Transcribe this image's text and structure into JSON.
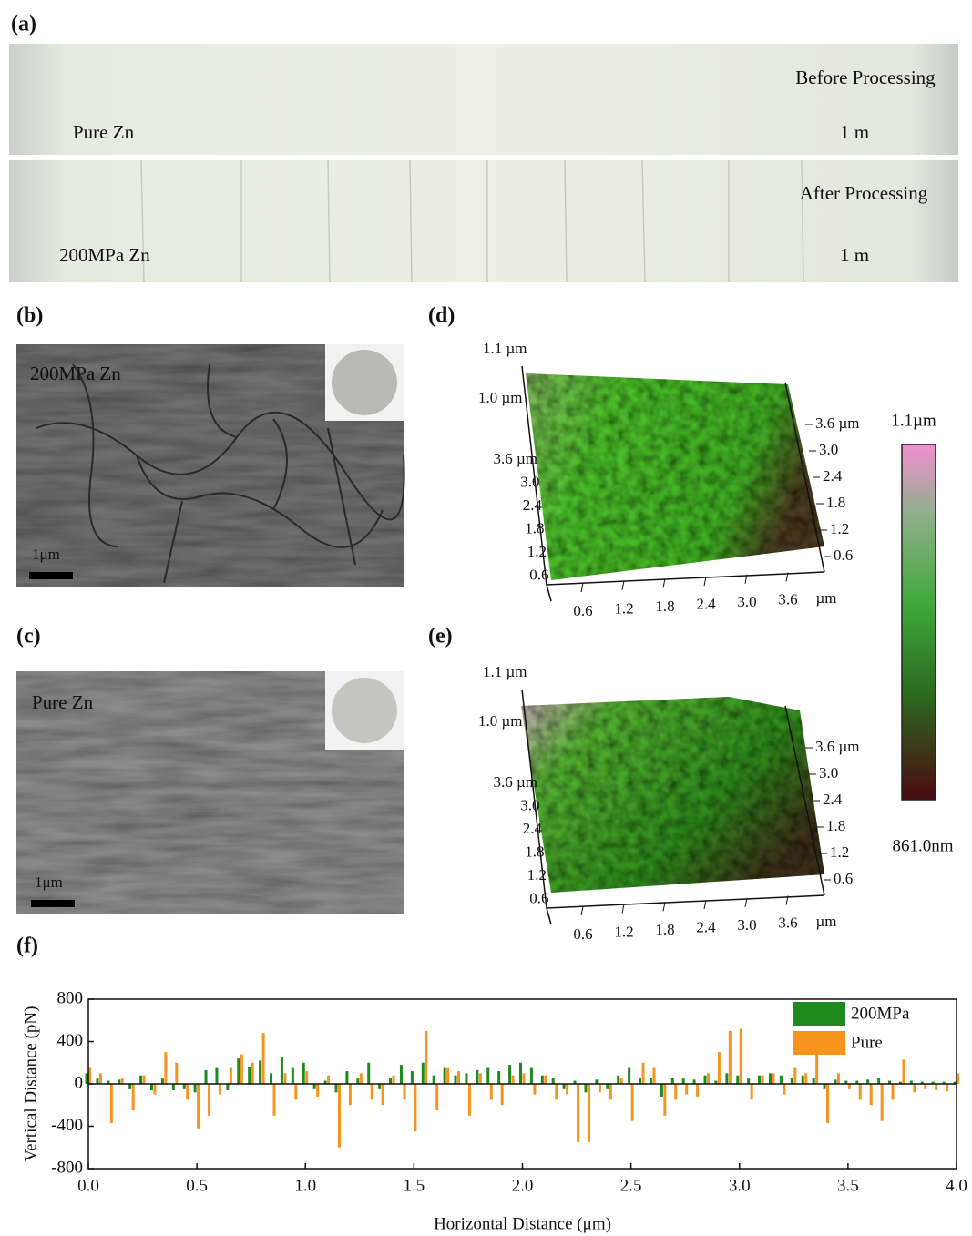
{
  "panel_labels": [
    "(a)",
    "(b)",
    "(c)",
    "(d)",
    "(e)",
    "(f)"
  ],
  "photo": {
    "before": "Before Processing",
    "before_sample": "Pure Zn",
    "before_scale": "1 m",
    "after": "After Processing",
    "after_sample": "200MPa Zn",
    "after_scale": "1 m"
  },
  "sem": [
    {
      "label": "200MPa Zn",
      "scale": "1μm"
    },
    {
      "label": "Pure Zn",
      "scale": "1μm"
    }
  ],
  "afm": [
    {
      "z_top": "1.1 µm",
      "z_mid": "1.0 µm",
      "right_ticks": [
        "3.6 µm",
        "3.0",
        "2.4",
        "1.8",
        "1.2",
        "0.6"
      ],
      "left_ticks": [
        "3.6 µm",
        "3.0",
        "2.4",
        "1.8",
        "1.2",
        "0.6"
      ],
      "x_ticks": [
        "0.6",
        "1.2",
        "1.8",
        "2.4",
        "3.0",
        "3.6"
      ],
      "x_unit": "µm"
    },
    {
      "z_top": "1.1 µm",
      "z_mid": "1.0 µm",
      "right_ticks": [
        "3.6 µm",
        "3.0",
        "2.4",
        "1.8",
        "1.2",
        "0.6"
      ],
      "left_ticks": [
        "3.6 µm",
        "3.0",
        "2.4",
        "1.8",
        "1.2",
        "0.6"
      ],
      "x_ticks": [
        "0.6",
        "1.2",
        "1.8",
        "2.4",
        "3.0",
        "3.6"
      ],
      "x_unit": "µm"
    }
  ],
  "colorbar": {
    "max": "1.1µm",
    "min": "861.0nm"
  },
  "chart_data": {
    "type": "bar",
    "x_label": "Horizontal Distance (μm)",
    "y_label": "Vertical Distance (pN)",
    "xlim": [
      0,
      4
    ],
    "xticks": [
      {
        "value": 0,
        "label": "0.0"
      },
      0.5,
      {
        "value": 1,
        "label": "1.0"
      },
      1.5,
      {
        "value": 2,
        "label": "2.0"
      },
      2.5,
      {
        "value": 3,
        "label": "3.0"
      },
      3.5,
      {
        "value": 4,
        "label": "4.0"
      }
    ],
    "ylim": [
      -800,
      800
    ],
    "yticks": [
      -800,
      -400,
      0,
      400,
      800
    ],
    "legend": "top-right",
    "x": [
      0,
      0.05,
      0.1,
      0.15,
      0.2,
      0.25,
      0.3,
      0.35,
      0.4,
      0.45,
      0.5,
      0.55,
      0.6,
      0.65,
      0.7,
      0.75,
      0.8,
      0.85,
      0.9,
      0.95,
      1,
      1.05,
      1.1,
      1.15,
      1.2,
      1.25,
      1.3,
      1.35,
      1.4,
      1.45,
      1.5,
      1.55,
      1.6,
      1.65,
      1.7,
      1.75,
      1.8,
      1.85,
      1.9,
      1.95,
      2,
      2.05,
      2.1,
      2.15,
      2.2,
      2.25,
      2.3,
      2.35,
      2.4,
      2.45,
      2.5,
      2.55,
      2.6,
      2.65,
      2.7,
      2.75,
      2.8,
      2.85,
      2.9,
      2.95,
      3,
      3.05,
      3.1,
      3.15,
      3.2,
      3.25,
      3.3,
      3.35,
      3.4,
      3.45,
      3.5,
      3.55,
      3.6,
      3.65,
      3.7,
      3.75,
      3.8,
      3.85,
      3.9,
      3.95,
      4
    ],
    "series": [
      {
        "name": "200MPa",
        "color": "#1e8a1e",
        "values": [
          100,
          50,
          30,
          40,
          -50,
          80,
          -60,
          50,
          -60,
          -50,
          -80,
          130,
          150,
          -60,
          240,
          160,
          220,
          100,
          250,
          150,
          200,
          -50,
          30,
          -80,
          120,
          50,
          200,
          -50,
          60,
          180,
          120,
          200,
          80,
          150,
          80,
          100,
          130,
          150,
          120,
          180,
          200,
          150,
          80,
          60,
          -50,
          30,
          -80,
          40,
          -50,
          80,
          150,
          60,
          60,
          -120,
          60,
          50,
          40,
          80,
          30,
          100,
          80,
          50,
          80,
          100,
          80,
          60,
          80,
          60,
          -50,
          40,
          30,
          30,
          40,
          60,
          30,
          20,
          30,
          20,
          20,
          20,
          20
        ]
      },
      {
        "name": "Pure",
        "color": "#f7941d",
        "values": [
          150,
          100,
          -370,
          50,
          -250,
          80,
          -100,
          300,
          200,
          -150,
          -420,
          -300,
          -100,
          150,
          280,
          200,
          480,
          -300,
          100,
          -150,
          120,
          -120,
          80,
          -600,
          -200,
          100,
          -150,
          -200,
          80,
          -150,
          -450,
          500,
          -250,
          150,
          120,
          -300,
          100,
          -150,
          -200,
          80,
          100,
          -100,
          80,
          -150,
          -100,
          -550,
          -550,
          -80,
          -150,
          50,
          -350,
          200,
          150,
          -300,
          -150,
          -100,
          -120,
          100,
          300,
          500,
          520,
          -150,
          80,
          100,
          -100,
          150,
          100,
          300,
          -370,
          100,
          -50,
          -150,
          -200,
          -350,
          -150,
          230,
          -80,
          -50,
          -60,
          -70,
          100
        ]
      }
    ]
  }
}
